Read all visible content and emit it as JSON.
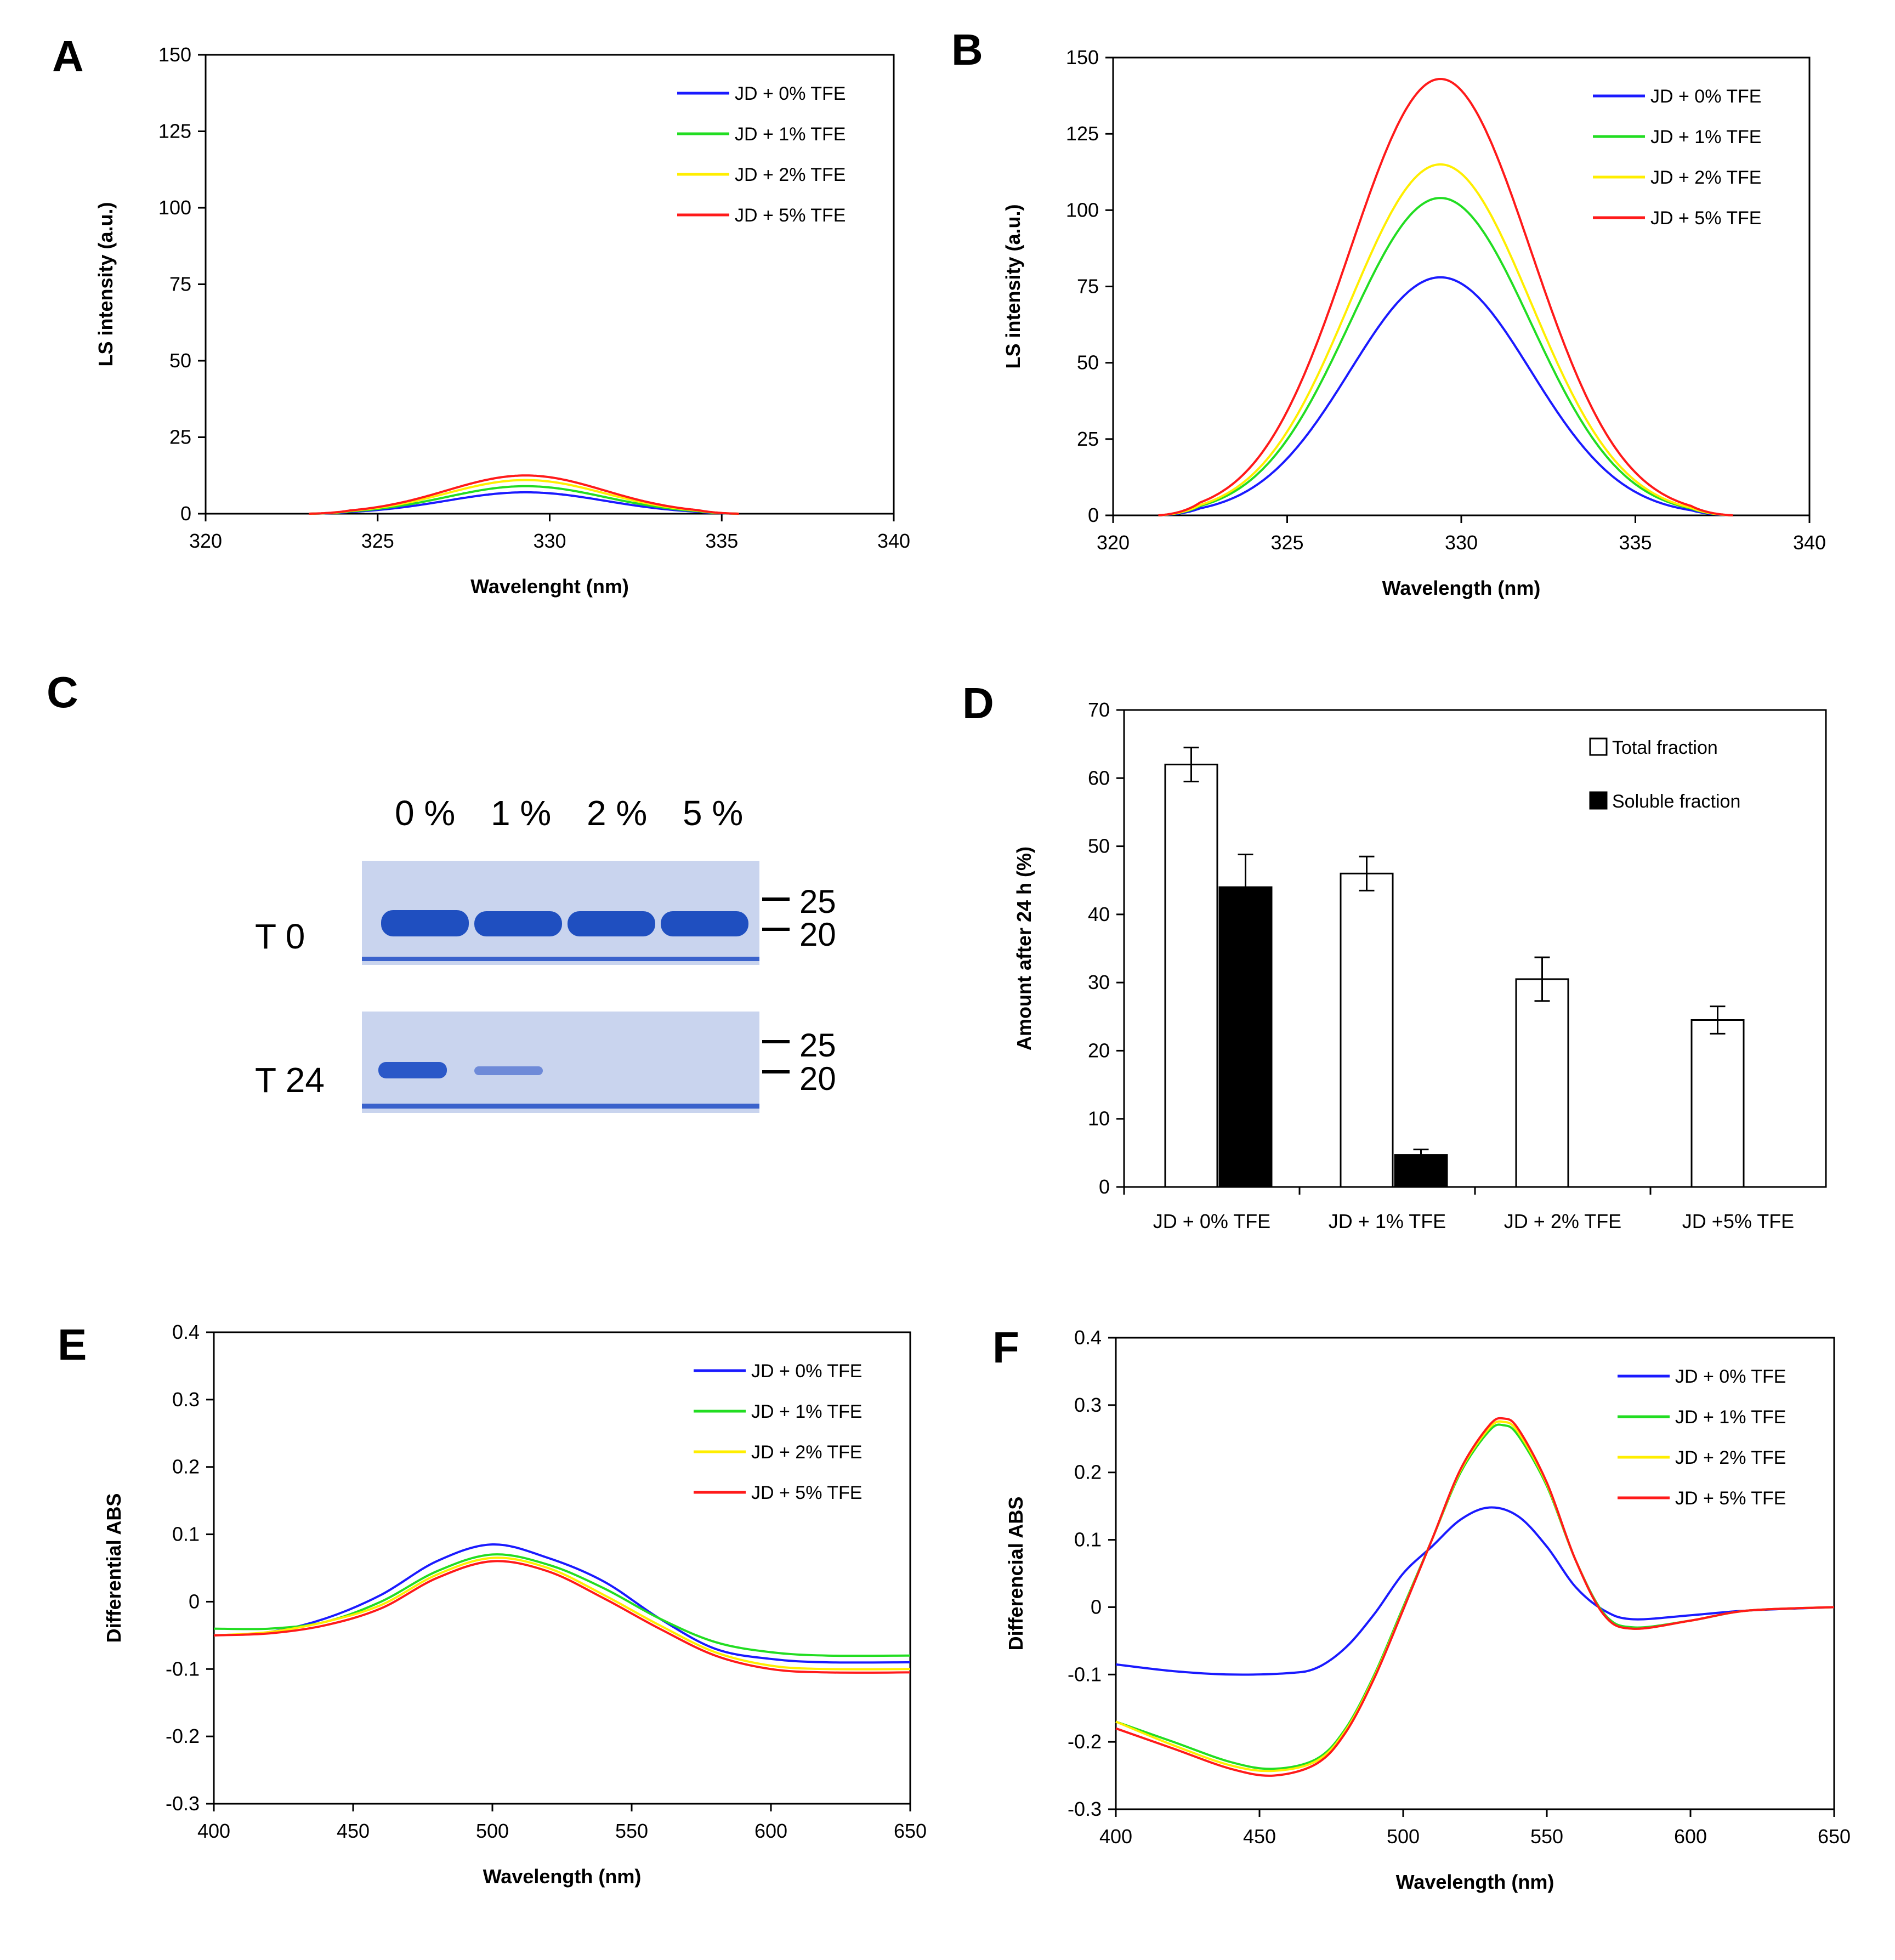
{
  "panels": {
    "A": {
      "letter": "A"
    },
    "B": {
      "letter": "B"
    },
    "C": {
      "letter": "C"
    },
    "D": {
      "letter": "D"
    },
    "E": {
      "letter": "E"
    },
    "F": {
      "letter": "F"
    }
  },
  "gel": {
    "lanes": [
      "0 %",
      "1 %",
      "2 %",
      "5 %"
    ],
    "rows": [
      "T 0",
      "T 24"
    ],
    "markers": [
      "25",
      "20"
    ],
    "colors": {
      "gel_bg": "#c9d4ee",
      "band": "#1f4fc0"
    }
  },
  "chart_data": [
    {
      "id": "A",
      "type": "line",
      "title": "",
      "xlabel": "Wavelenght (nm)",
      "ylabel": "LS intensity (a.u.)",
      "xlim": [
        320,
        340
      ],
      "ylim": [
        0,
        150
      ],
      "xticks": [
        320,
        325,
        330,
        335,
        340
      ],
      "yticks": [
        0,
        25,
        50,
        75,
        100,
        125,
        150
      ],
      "legend_position": "top-right",
      "series": [
        {
          "name": "JD + 0% TFE",
          "color": "#1a1aff",
          "peak": 7,
          "center": 329.3,
          "width": 2.3,
          "start": 323,
          "end": 335.5
        },
        {
          "name": "JD + 1% TFE",
          "color": "#22dd22",
          "peak": 9,
          "center": 329.3,
          "width": 2.3,
          "start": 323,
          "end": 335.5
        },
        {
          "name": "JD + 2% TFE",
          "color": "#ffee00",
          "peak": 11,
          "center": 329.3,
          "width": 2.3,
          "start": 323,
          "end": 335.5
        },
        {
          "name": "JD + 5% TFE",
          "color": "#ff1a1a",
          "peak": 12.5,
          "center": 329.3,
          "width": 2.3,
          "start": 323,
          "end": 335.5
        }
      ]
    },
    {
      "id": "B",
      "type": "line",
      "title": "",
      "xlabel": "Wavelength (nm)",
      "ylabel": "LS intensity (a.u.)",
      "xlim": [
        320,
        340
      ],
      "ylim": [
        0,
        150
      ],
      "xticks": [
        320,
        325,
        330,
        335,
        340
      ],
      "yticks": [
        0,
        25,
        50,
        75,
        100,
        125,
        150
      ],
      "legend_position": "top-right",
      "series": [
        {
          "name": "JD + 0% TFE",
          "color": "#1a1aff",
          "peak": 78,
          "center": 329.4,
          "width": 2.6,
          "start": 321.3,
          "end": 337.8
        },
        {
          "name": "JD + 1% TFE",
          "color": "#22dd22",
          "peak": 104,
          "center": 329.4,
          "width": 2.6,
          "start": 321.3,
          "end": 337.8
        },
        {
          "name": "JD + 2% TFE",
          "color": "#ffee00",
          "peak": 115,
          "center": 329.4,
          "width": 2.6,
          "start": 321.3,
          "end": 337.8
        },
        {
          "name": "JD + 5% TFE",
          "color": "#ff1a1a",
          "peak": 143,
          "center": 329.4,
          "width": 2.6,
          "start": 321.3,
          "end": 337.8
        }
      ]
    },
    {
      "id": "D",
      "type": "bar",
      "title": "",
      "xlabel": "",
      "ylabel": "Amount after 24 h (%)",
      "ylim": [
        0,
        70
      ],
      "yticks": [
        0,
        10,
        20,
        30,
        40,
        50,
        60,
        70
      ],
      "categories": [
        "JD + 0% TFE",
        "JD + 1% TFE",
        "JD + 2% TFE",
        "JD +5% TFE"
      ],
      "legend_position": "top-right",
      "series": [
        {
          "name": "Total fraction",
          "color": "#ffffff",
          "values": [
            62,
            46,
            30.5,
            24.5
          ],
          "errors": [
            2.5,
            2.5,
            3.2,
            2.0
          ]
        },
        {
          "name": "Soluble fraction",
          "color": "#000000",
          "values": [
            44,
            4.7,
            0,
            0
          ],
          "errors": [
            4.8,
            0.8,
            0,
            0
          ]
        }
      ]
    },
    {
      "id": "E",
      "type": "line",
      "title": "",
      "xlabel": "Wavelength (nm)",
      "ylabel": "Differential ABS",
      "xlim": [
        400,
        650
      ],
      "ylim": [
        -0.3,
        0.4
      ],
      "xticks": [
        400,
        450,
        500,
        550,
        600,
        650
      ],
      "yticks": [
        -0.3,
        -0.2,
        -0.1,
        0,
        0.1,
        0.2,
        0.3,
        0.4
      ],
      "legend_position": "top-right",
      "series": [
        {
          "name": "JD + 0% TFE",
          "color": "#1a1aff",
          "x": [
            400,
            420,
            440,
            460,
            480,
            500,
            520,
            540,
            560,
            580,
            600,
            620,
            650
          ],
          "y": [
            -0.05,
            -0.045,
            -0.025,
            0.01,
            0.06,
            0.085,
            0.065,
            0.03,
            -0.025,
            -0.07,
            -0.085,
            -0.09,
            -0.09
          ]
        },
        {
          "name": "JD + 1% TFE",
          "color": "#22dd22",
          "x": [
            400,
            420,
            440,
            460,
            480,
            500,
            520,
            540,
            560,
            580,
            600,
            620,
            650
          ],
          "y": [
            -0.04,
            -0.04,
            -0.03,
            0.0,
            0.045,
            0.07,
            0.055,
            0.02,
            -0.025,
            -0.06,
            -0.075,
            -0.08,
            -0.08
          ]
        },
        {
          "name": "JD + 2% TFE",
          "color": "#ffee00",
          "x": [
            400,
            420,
            440,
            460,
            480,
            500,
            520,
            540,
            560,
            580,
            600,
            620,
            650
          ],
          "y": [
            -0.05,
            -0.045,
            -0.03,
            -0.005,
            0.04,
            0.065,
            0.05,
            0.01,
            -0.035,
            -0.075,
            -0.095,
            -0.1,
            -0.1
          ]
        },
        {
          "name": "JD + 5% TFE",
          "color": "#ff1a1a",
          "x": [
            400,
            420,
            440,
            460,
            480,
            500,
            520,
            540,
            560,
            580,
            600,
            620,
            650
          ],
          "y": [
            -0.05,
            -0.047,
            -0.035,
            -0.01,
            0.035,
            0.06,
            0.045,
            0.005,
            -0.04,
            -0.08,
            -0.1,
            -0.105,
            -0.105
          ]
        }
      ]
    },
    {
      "id": "F",
      "type": "line",
      "title": "",
      "xlabel": "Wavelength (nm)",
      "ylabel": "Differencial ABS",
      "xlim": [
        400,
        650
      ],
      "ylim": [
        -0.3,
        0.4
      ],
      "xticks": [
        400,
        450,
        500,
        550,
        600,
        650
      ],
      "yticks": [
        -0.3,
        -0.2,
        -0.1,
        0,
        0.1,
        0.2,
        0.3,
        0.4
      ],
      "legend_position": "top-right",
      "series": [
        {
          "name": "JD + 0% TFE",
          "color": "#1a1aff",
          "x": [
            400,
            420,
            440,
            460,
            470,
            480,
            490,
            500,
            510,
            520,
            530,
            540,
            550,
            560,
            570,
            580,
            600,
            620,
            650
          ],
          "y": [
            -0.085,
            -0.095,
            -0.1,
            -0.098,
            -0.09,
            -0.06,
            -0.01,
            0.05,
            0.09,
            0.13,
            0.148,
            0.135,
            0.09,
            0.03,
            -0.005,
            -0.018,
            -0.012,
            -0.005,
            0.0
          ]
        },
        {
          "name": "JD + 1% TFE",
          "color": "#22dd22",
          "x": [
            400,
            420,
            440,
            455,
            470,
            480,
            490,
            500,
            510,
            520,
            530,
            535,
            540,
            550,
            560,
            570,
            580,
            600,
            620,
            650
          ],
          "y": [
            -0.17,
            -0.2,
            -0.23,
            -0.24,
            -0.225,
            -0.18,
            -0.1,
            0.0,
            0.1,
            0.2,
            0.262,
            0.27,
            0.255,
            0.18,
            0.07,
            -0.01,
            -0.03,
            -0.02,
            -0.005,
            0.0
          ]
        },
        {
          "name": "JD + 2% TFE",
          "color": "#ffee00",
          "x": [
            400,
            420,
            440,
            455,
            470,
            480,
            490,
            500,
            510,
            520,
            530,
            535,
            540,
            550,
            560,
            570,
            580,
            600,
            620,
            650
          ],
          "y": [
            -0.17,
            -0.205,
            -0.235,
            -0.243,
            -0.228,
            -0.183,
            -0.103,
            -0.003,
            0.1,
            0.203,
            0.266,
            0.275,
            0.26,
            0.183,
            0.07,
            -0.012,
            -0.032,
            -0.02,
            -0.005,
            0.0
          ]
        },
        {
          "name": "JD + 5% TFE",
          "color": "#ff1a1a",
          "x": [
            400,
            420,
            440,
            455,
            470,
            480,
            490,
            500,
            510,
            520,
            530,
            535,
            540,
            550,
            560,
            570,
            580,
            600,
            620,
            650
          ],
          "y": [
            -0.18,
            -0.21,
            -0.24,
            -0.25,
            -0.232,
            -0.186,
            -0.105,
            -0.004,
            0.1,
            0.205,
            0.27,
            0.28,
            0.265,
            0.185,
            0.07,
            -0.012,
            -0.032,
            -0.02,
            -0.005,
            0.0
          ]
        }
      ]
    }
  ]
}
